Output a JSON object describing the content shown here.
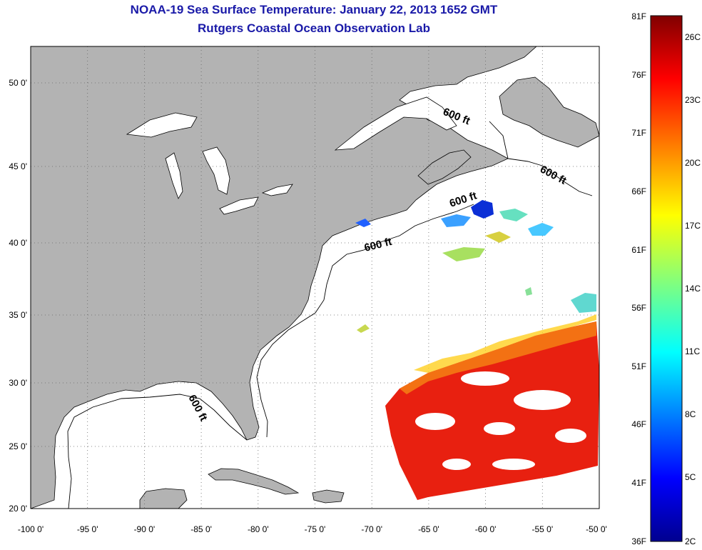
{
  "title": "NOAA-19 Sea Surface Temperature:  January 22, 2013 1652 GMT",
  "subtitle": "Rutgers Coastal Ocean Observation Lab",
  "axes": {
    "lon_ticks": [
      "-100 0'",
      "-95 0'",
      "-90 0'",
      "-85 0'",
      "-80 0'",
      "-75 0'",
      "-70 0'",
      "-65 0'",
      "-60 0'",
      "-55 0'",
      "-50 0'"
    ],
    "lat_ticks": [
      "50 0'",
      "45 0'",
      "40 0'",
      "35 0'",
      "30 0'",
      "25 0'",
      "20 0'"
    ],
    "lon_range": [
      -100,
      -50
    ],
    "lat_range": [
      20,
      52.5
    ],
    "grid": true
  },
  "isobath_labels": [
    "600 ft",
    "600 ft",
    "600 ft",
    "600 ft",
    "600 ft"
  ],
  "colorbar": {
    "f_labels": [
      "81F",
      "76F",
      "71F",
      "66F",
      "61F",
      "56F",
      "51F",
      "46F",
      "41F",
      "36F"
    ],
    "c_labels": [
      "26C",
      "23C",
      "20C",
      "17C",
      "14C",
      "11C",
      "8C",
      "5C",
      "2C"
    ]
  },
  "colors": {
    "land": "#b3b3b3",
    "ocean": "#ffffff",
    "title": "#1a1aa8",
    "warm": "#e82010",
    "cold": "#0b2fd6"
  }
}
